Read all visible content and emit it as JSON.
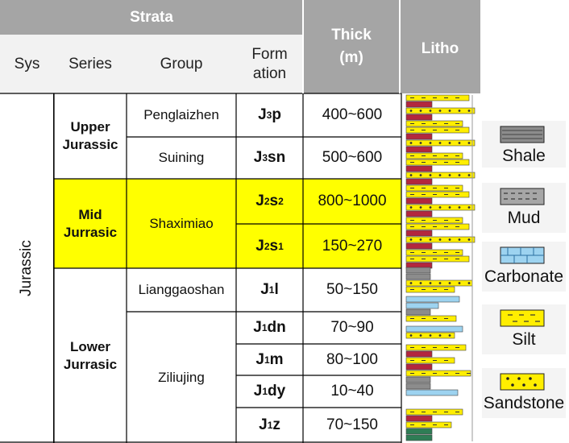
{
  "header": {
    "strata": "Strata",
    "sys": "Sys",
    "series": "Series",
    "group": "Group",
    "formation": "Form ation",
    "thick": "Thick (m)",
    "litho": "Litho"
  },
  "system": "Jurassic",
  "series": [
    {
      "name": "Upper Jurassic"
    },
    {
      "name": "Mid Jurrasic"
    },
    {
      "name": "Lower Jurrasic"
    }
  ],
  "groups": [
    "Penglaizhen",
    "Suining",
    "Shaximiao",
    "Lianggaoshan",
    "Ziliujing"
  ],
  "rows": [
    {
      "formation_main": "J",
      "formation_sub": "3",
      "formation_rest": "p",
      "formation_sup": "",
      "thick": "400~600"
    },
    {
      "formation_main": "J",
      "formation_sub": "3",
      "formation_rest": "sn",
      "formation_sup": "",
      "thick": "500~600"
    },
    {
      "formation_main": "J",
      "formation_sub": "2",
      "formation_rest": "s",
      "formation_sup": "2",
      "thick": "800~1000"
    },
    {
      "formation_main": "J",
      "formation_sub": "2",
      "formation_rest": "s",
      "formation_sup": "1",
      "thick": "150~270"
    },
    {
      "formation_main": "J",
      "formation_sub": "1",
      "formation_rest": "l",
      "formation_sup": "",
      "thick": "50~150"
    },
    {
      "formation_main": "J",
      "formation_sub": "1",
      "formation_rest": "dn",
      "formation_sup": "",
      "thick": "70~90"
    },
    {
      "formation_main": "J",
      "formation_sub": "1",
      "formation_rest": "m",
      "formation_sup": "",
      "thick": "80~100"
    },
    {
      "formation_main": "J",
      "formation_sub": "1",
      "formation_rest": "dy",
      "formation_sup": "",
      "thick": "10~40"
    },
    {
      "formation_main": "J",
      "formation_sub": "1",
      "formation_rest": "z",
      "formation_sup": "",
      "thick": "70~150"
    }
  ],
  "legend": [
    {
      "label": "Shale",
      "icon": "shale-swatch-icon"
    },
    {
      "label": "Mud",
      "icon": "mud-swatch-icon"
    },
    {
      "label": "Carbonate",
      "icon": "carbonate-swatch-icon"
    },
    {
      "label": "Silt",
      "icon": "silt-swatch-icon"
    },
    {
      "label": "Sandstone",
      "icon": "sandstone-swatch-icon"
    }
  ],
  "colors": {
    "header_bg": "#a5a5a5",
    "highlight": "#ffff00",
    "shale": "#8c8c8c",
    "mud": "#a6a6a6",
    "carbonate": "#9dd3f0",
    "silt": "#ffee00",
    "sandstone": "#ffee00",
    "red_bed": "#b3263e",
    "green_bed": "#2e7d55"
  }
}
